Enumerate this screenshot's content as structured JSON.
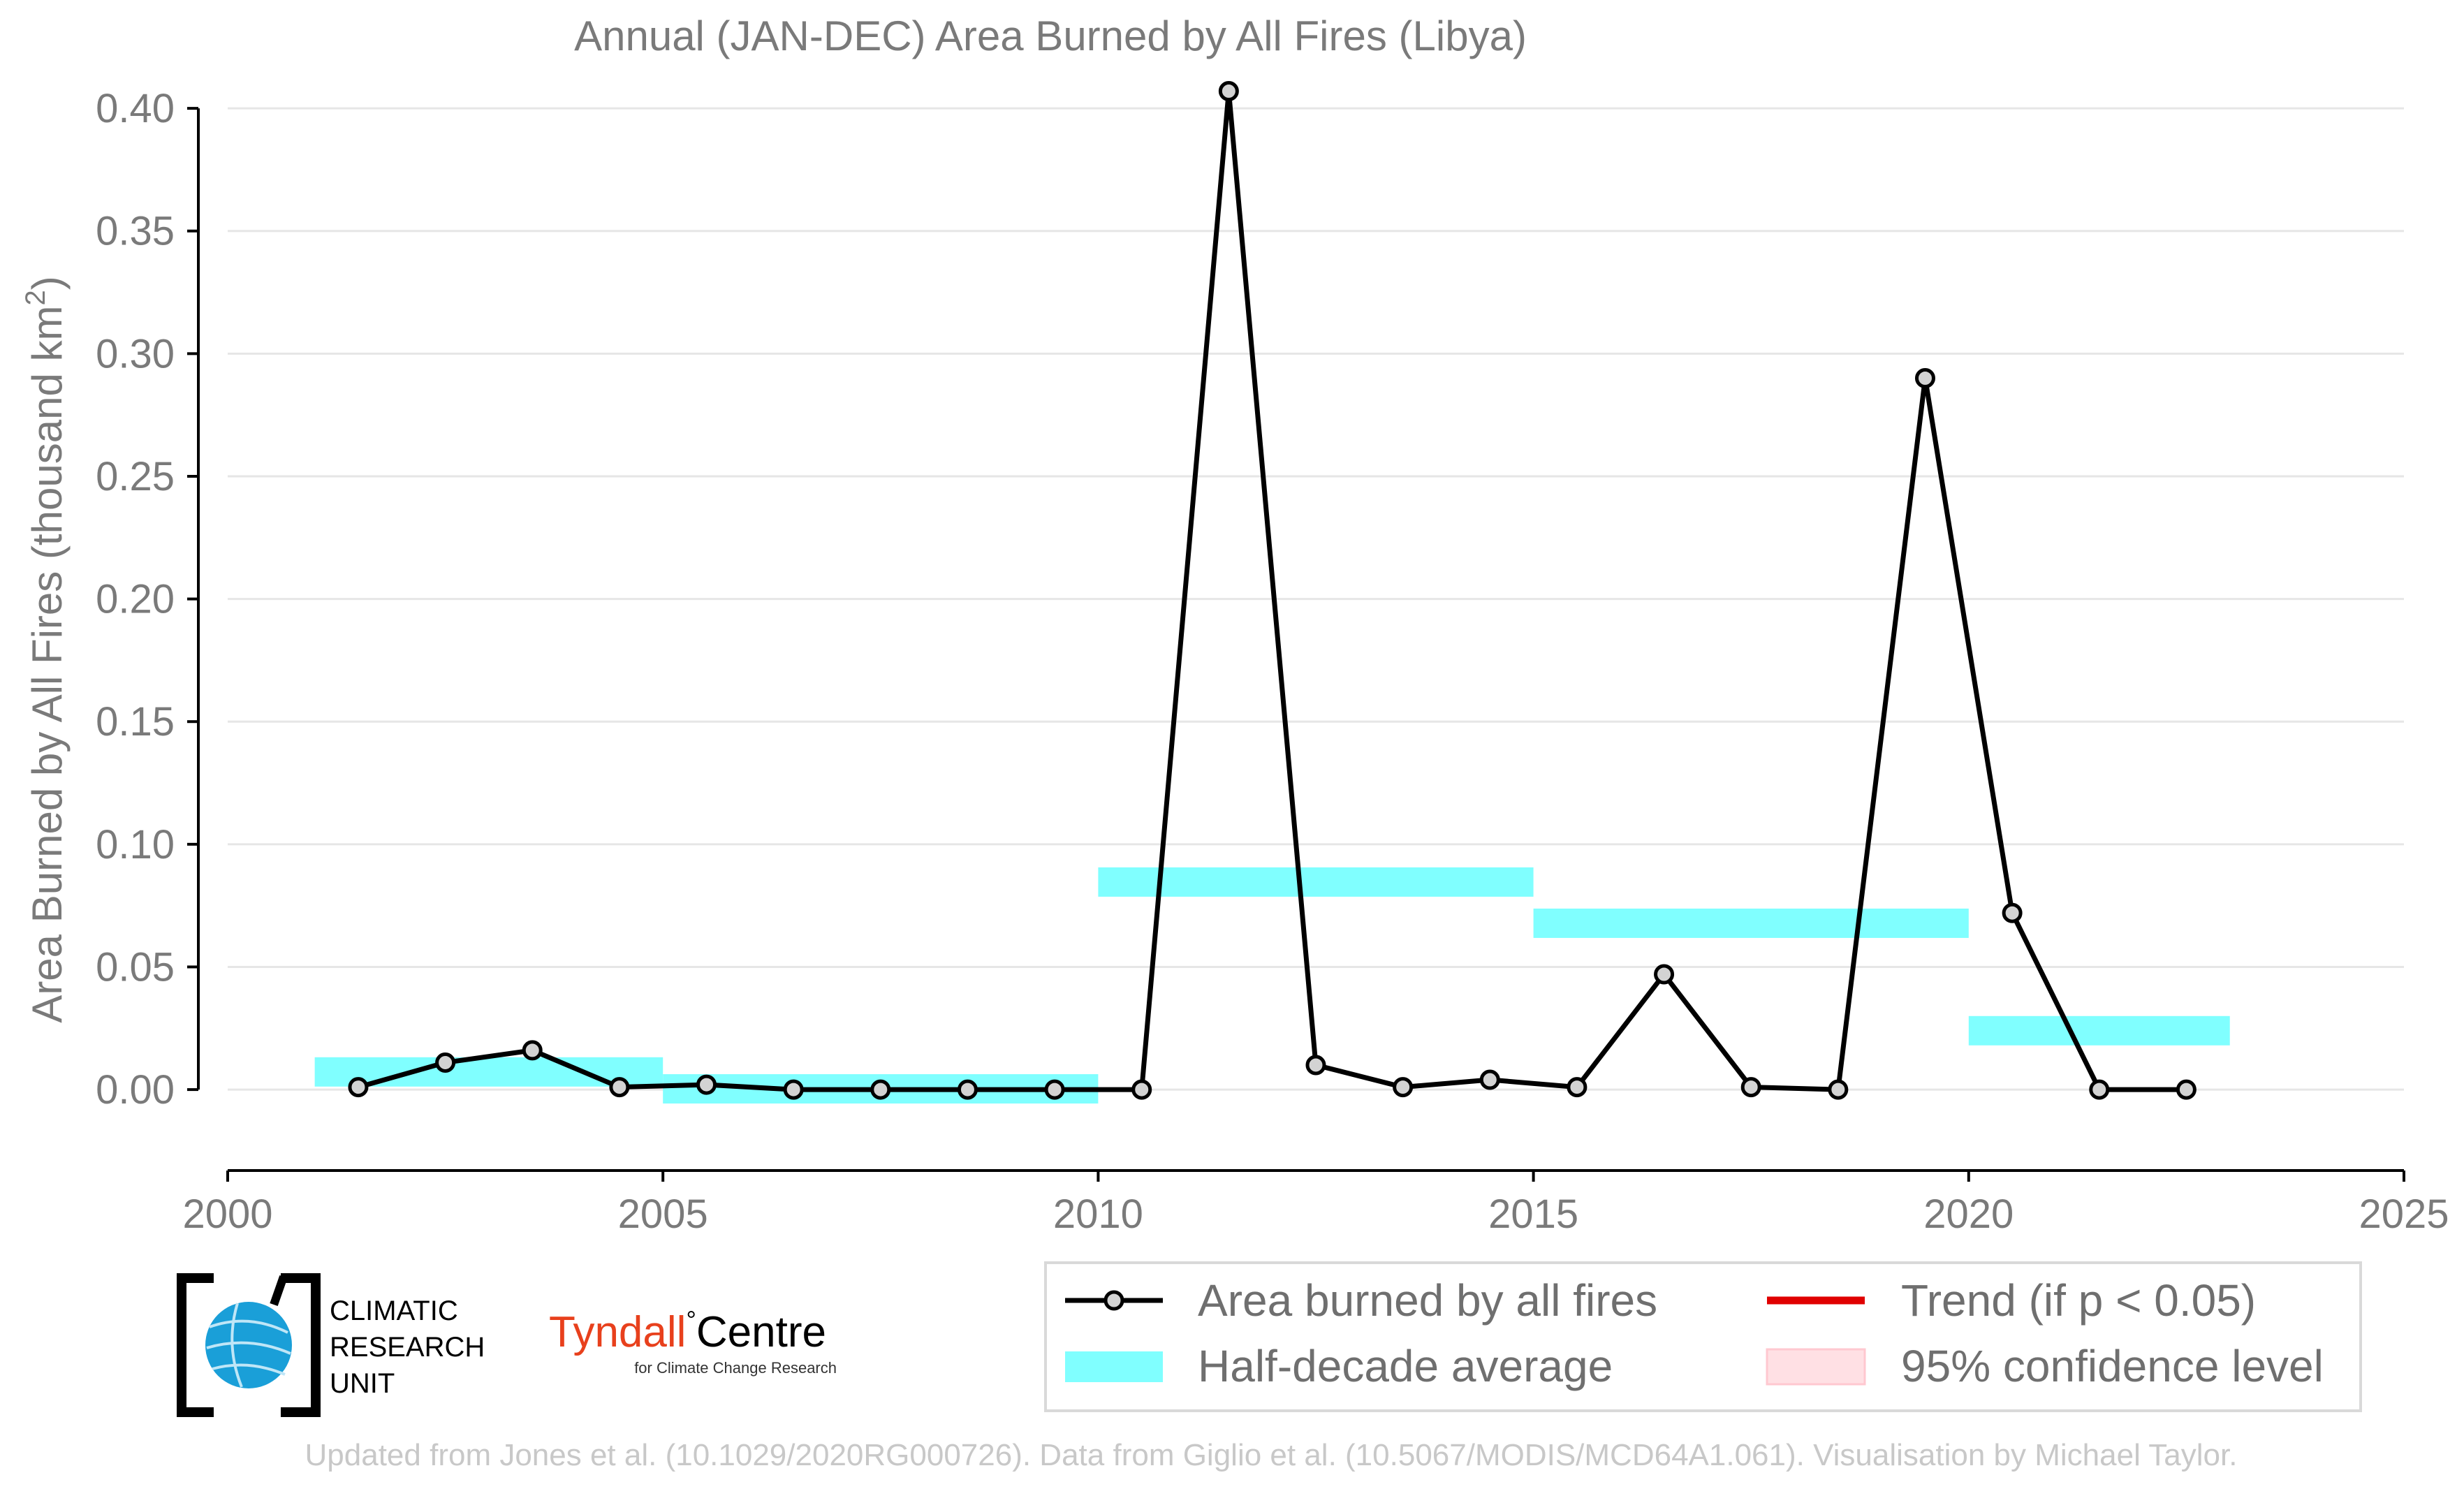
{
  "chart_data": {
    "type": "line",
    "title": "Annual (JAN-DEC) Area Burned by All Fires (Libya)",
    "ylabel": "Area Burned by All Fires (thousand km",
    "ylabel_sup": "2",
    "ylabel_close": ")",
    "xlim": [
      2000,
      2025
    ],
    "ylim": [
      -0.033,
      0.41
    ],
    "xticks": [
      2000,
      2005,
      2010,
      2015,
      2020,
      2025
    ],
    "yticks": [
      0.0,
      0.05,
      0.1,
      0.15,
      0.2,
      0.25,
      0.3,
      0.35,
      0.4
    ],
    "ytick_labels": [
      "0.00",
      "0.05",
      "0.10",
      "0.15",
      "0.20",
      "0.25",
      "0.30",
      "0.35",
      "0.40"
    ],
    "grid": "horizontal",
    "series": [
      {
        "name": "Area burned by all fires",
        "x": [
          2001.5,
          2002.5,
          2003.5,
          2004.5,
          2005.5,
          2006.5,
          2007.5,
          2008.5,
          2009.5,
          2010.5,
          2011.5,
          2012.5,
          2013.5,
          2014.5,
          2015.5,
          2016.5,
          2017.5,
          2018.5,
          2019.5,
          2020.5,
          2021.5,
          2022.5
        ],
        "y": [
          0.001,
          0.011,
          0.016,
          0.001,
          0.002,
          0.0,
          0.0,
          0.0,
          0.0,
          0.0,
          0.407,
          0.01,
          0.001,
          0.004,
          0.001,
          0.047,
          0.001,
          0.0,
          0.29,
          0.072,
          0.0,
          0.0
        ],
        "color": "#000000"
      }
    ],
    "half_decade_average": {
      "name": "Half-decade average",
      "color": "#80ffff",
      "bars": [
        {
          "x0": 2001,
          "x1": 2005,
          "y": 0.0072
        },
        {
          "x0": 2005,
          "x1": 2010,
          "y": 0.0003
        },
        {
          "x0": 2010,
          "x1": 2015,
          "y": 0.0846
        },
        {
          "x0": 2015,
          "x1": 2020,
          "y": 0.0678
        },
        {
          "x0": 2020,
          "x1": 2023,
          "y": 0.024
        }
      ]
    },
    "legend": {
      "position": "bottom-right",
      "entries": [
        {
          "label": "Area burned by all fires",
          "color": "#000000"
        },
        {
          "label": "Trend (if p < 0.05)",
          "color": "#e00000"
        },
        {
          "label": "Half-decade average",
          "color": "#80ffff"
        },
        {
          "label": "95% confidence level",
          "color": "#ffe0e4"
        }
      ]
    }
  },
  "logos": {
    "cru_line1": "CLIMATIC",
    "cru_line2": "RESEARCH",
    "cru_line3": "UNIT",
    "tyndall_name": "Tyndall",
    "tyndall_degree": "°",
    "tyndall_centre": "Centre",
    "tyndall_sub": "for Climate Change Research",
    "tyndall_color": "#e8401c"
  },
  "footer": "Updated from Jones et al. (10.1029/2020RG000726). Data from Giglio et al. (10.5067/MODIS/MCD64A1.061). Visualisation by Michael Taylor."
}
